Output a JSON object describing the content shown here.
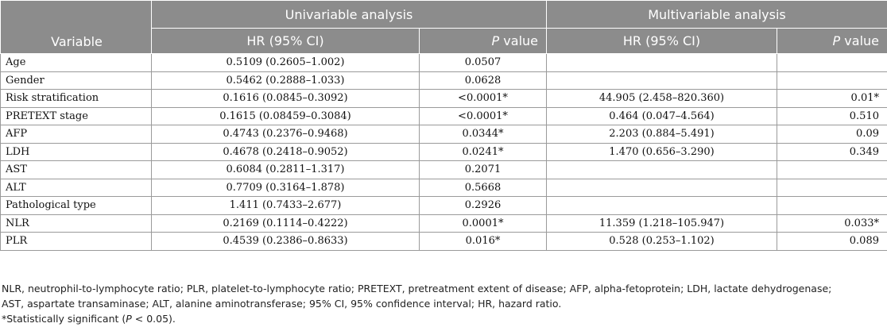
{
  "header": {
    "variable": "Variable",
    "univariable": "Univariable analysis",
    "multivariable": "Multivariable analysis",
    "hr": "HR (95% CI)",
    "p_letter": "P",
    "p_suffix": " value"
  },
  "rows": [
    {
      "variable": "Age",
      "uni_hr": "0.5109 (0.2605–1.002)",
      "uni_p": "0.0507",
      "multi_hr": "",
      "multi_p": ""
    },
    {
      "variable": "Gender",
      "uni_hr": "0.5462 (0.2888–1.033)",
      "uni_p": "0.0628",
      "multi_hr": "",
      "multi_p": ""
    },
    {
      "variable": "Risk stratification",
      "uni_hr": "0.1616 (0.0845–0.3092)",
      "uni_p": "<0.0001*",
      "multi_hr": "44.905 (2.458–820.360)",
      "multi_p": "0.01*"
    },
    {
      "variable": "PRETEXT stage",
      "uni_hr": "0.1615 (0.08459–0.3084)",
      "uni_p": "<0.0001*",
      "multi_hr": "0.464 (0.047–4.564)",
      "multi_p": "0.510"
    },
    {
      "variable": "AFP",
      "uni_hr": "0.4743 (0.2376–0.9468)",
      "uni_p": "0.0344*",
      "multi_hr": "2.203 (0.884–5.491)",
      "multi_p": "0.09"
    },
    {
      "variable": "LDH",
      "uni_hr": "0.4678 (0.2418–0.9052)",
      "uni_p": "0.0241*",
      "multi_hr": "1.470 (0.656–3.290)",
      "multi_p": "0.349"
    },
    {
      "variable": "AST",
      "uni_hr": "0.6084 (0.2811–1.317)",
      "uni_p": "0.2071",
      "multi_hr": "",
      "multi_p": ""
    },
    {
      "variable": "ALT",
      "uni_hr": "0.7709 (0.3164–1.878)",
      "uni_p": "0.5668",
      "multi_hr": "",
      "multi_p": ""
    },
    {
      "variable": "Pathological type",
      "uni_hr": "1.411 (0.7433–2.677)",
      "uni_p": "0.2926",
      "multi_hr": "",
      "multi_p": ""
    },
    {
      "variable": "NLR",
      "uni_hr": "0.2169 (0.1114–0.4222)",
      "uni_p": "0.0001*",
      "multi_hr": "11.359 (1.218–105.947)",
      "multi_p": "0.033*"
    },
    {
      "variable": "PLR",
      "uni_hr": "0.4539 (0.2386–0.8633)",
      "uni_p": "0.016*",
      "multi_hr": "0.528 (0.253–1.102)",
      "multi_p": "0.089"
    }
  ],
  "footnotes": {
    "abbrev_line1": "NLR, neutrophil-to-lymphocyte ratio; PLR, platelet-to-lymphocyte ratio; PRETEXT, pretreatment extent of disease; AFP, alpha-fetoprotein; LDH, lactate dehydrogenase;",
    "abbrev_line2": "AST, aspartate transaminase; ALT, alanine aminotransferase; 95% CI, 95% confidence interval; HR, hazard ratio.",
    "sig_prefix": "*Statistically significant (",
    "sig_italic": "P",
    "sig_suffix": " < 0.05)."
  }
}
